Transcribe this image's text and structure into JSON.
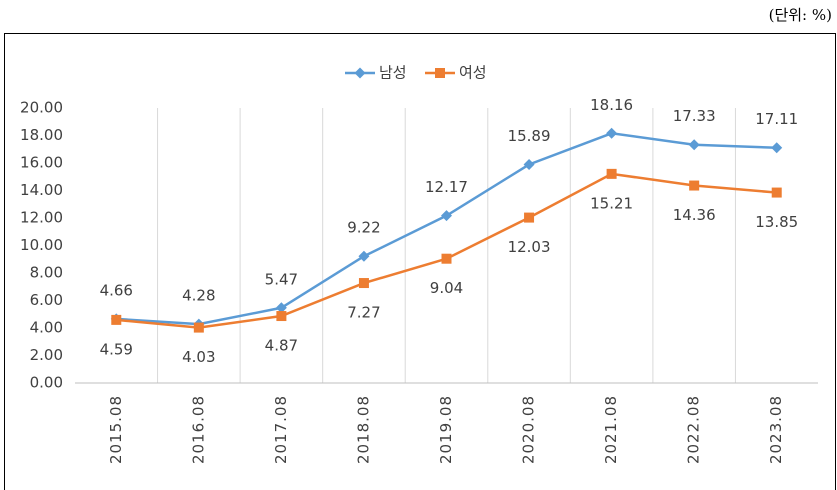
{
  "chart_data": {
    "type": "line",
    "unit_note": "(단위: %)",
    "categories": [
      "2015.08",
      "2016.08",
      "2017.08",
      "2018.08",
      "2019.08",
      "2020.08",
      "2021.08",
      "2022.08",
      "2023.08"
    ],
    "series": [
      {
        "name": "남성",
        "color": "#5b9bd5",
        "marker": "diamond",
        "values": [
          4.66,
          4.28,
          5.47,
          9.22,
          12.17,
          15.89,
          18.16,
          17.33,
          17.11
        ]
      },
      {
        "name": "여성",
        "color": "#ed7d31",
        "marker": "square",
        "values": [
          4.59,
          4.03,
          4.87,
          7.27,
          9.04,
          12.03,
          15.21,
          14.36,
          13.85
        ]
      }
    ],
    "ylim": [
      0,
      20
    ],
    "yticks": [
      {
        "value": 0,
        "label": "0.00"
      },
      {
        "value": 2,
        "label": "2.00"
      },
      {
        "value": 4,
        "label": "4.00"
      },
      {
        "value": 6,
        "label": "6.00"
      },
      {
        "value": 8,
        "label": "8.00"
      },
      {
        "value": 10,
        "label": "10.00"
      },
      {
        "value": 12,
        "label": "12.00"
      },
      {
        "value": 14,
        "label": "14.00"
      },
      {
        "value": 16,
        "label": "16.00"
      },
      {
        "value": 18,
        "label": "18.00"
      },
      {
        "value": 20,
        "label": "20.00"
      }
    ],
    "grid": "vertical",
    "legend": "top"
  }
}
